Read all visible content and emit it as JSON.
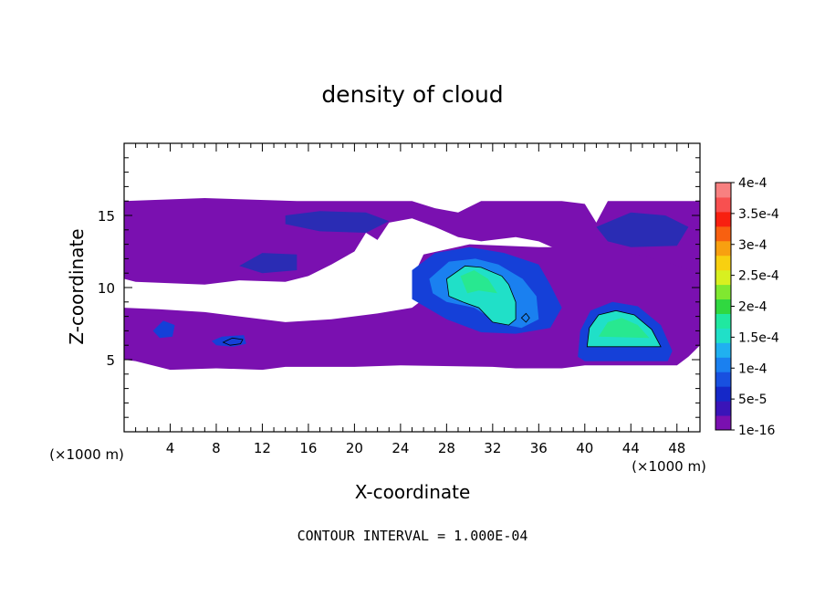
{
  "chart_data": {
    "type": "heatmap",
    "title": "density of cloud",
    "xlabel": "X-coordinate",
    "ylabel": "Z-coordinate",
    "x_unit_label": "(×1000 m)",
    "y_unit_label": "(×1000 m)",
    "xlim": [
      0,
      50
    ],
    "ylim": [
      0,
      20
    ],
    "x_ticks": [
      "4",
      "8",
      "12",
      "16",
      "20",
      "24",
      "28",
      "32",
      "36",
      "40",
      "44",
      "48"
    ],
    "y_ticks": [
      "5",
      "10",
      "15"
    ],
    "footer": "CONTOUR INTERVAL = 1.000E-04",
    "colorbar": {
      "labels": [
        "1e-16",
        "5e-5",
        "1e-4",
        "1.5e-4",
        "2e-4",
        "2.5e-4",
        "3e-4",
        "3.5e-4",
        "4e-4"
      ],
      "colors": [
        "#7a10b0",
        "#3a14b8",
        "#1528c8",
        "#1850e0",
        "#1a80f0",
        "#20b0f0",
        "#20e0c8",
        "#20e8a0",
        "#30d840",
        "#80e830",
        "#d8f020",
        "#f8d010",
        "#f8a010",
        "#f86010",
        "#f82010",
        "#f85050",
        "#f88080"
      ]
    },
    "regions": [
      {
        "name": "upper-cloud-layer",
        "level": 0,
        "polygon": [
          [
            0,
            16
          ],
          [
            7,
            16.2
          ],
          [
            15,
            16
          ],
          [
            25,
            16
          ],
          [
            27,
            15.5
          ],
          [
            29,
            15.2
          ],
          [
            31,
            16
          ],
          [
            38,
            16
          ],
          [
            40,
            15.8
          ],
          [
            41,
            14.5
          ],
          [
            42,
            16
          ],
          [
            50,
            16
          ],
          [
            50,
            11
          ],
          [
            48,
            11.3
          ],
          [
            45,
            11
          ],
          [
            42,
            11.5
          ],
          [
            38,
            12.5
          ],
          [
            36,
            13.2
          ],
          [
            34,
            13.5
          ],
          [
            31,
            13.2
          ],
          [
            29,
            13.5
          ],
          [
            27,
            14.2
          ],
          [
            25,
            14.8
          ],
          [
            23,
            14.5
          ],
          [
            22,
            13.3
          ],
          [
            21,
            13.8
          ],
          [
            20,
            12.5
          ],
          [
            18,
            11.6
          ],
          [
            16,
            10.8
          ],
          [
            14,
            10.4
          ],
          [
            10,
            10.5
          ],
          [
            7,
            10.2
          ],
          [
            4,
            10.3
          ],
          [
            1,
            10.4
          ],
          [
            0,
            10.6
          ]
        ]
      },
      {
        "name": "mid-cloud-layer",
        "level": 0,
        "polygon": [
          [
            0,
            8.6
          ],
          [
            3,
            8.5
          ],
          [
            7,
            8.3
          ],
          [
            12,
            7.8
          ],
          [
            14,
            7.6
          ],
          [
            18,
            7.8
          ],
          [
            22,
            8.2
          ],
          [
            25,
            8.6
          ],
          [
            26,
            9.2
          ],
          [
            25,
            10.6
          ],
          [
            26,
            12.3
          ],
          [
            30,
            13.0
          ],
          [
            36,
            12.8
          ],
          [
            42,
            12.8
          ],
          [
            47,
            11.8
          ],
          [
            50,
            11.0
          ],
          [
            50,
            6.0
          ],
          [
            49,
            5.2
          ],
          [
            48,
            4.6
          ],
          [
            40,
            4.6
          ],
          [
            38,
            4.4
          ],
          [
            34,
            4.4
          ],
          [
            32,
            4.5
          ],
          [
            24,
            4.6
          ],
          [
            20,
            4.5
          ],
          [
            14,
            4.5
          ],
          [
            12,
            4.3
          ],
          [
            8,
            4.4
          ],
          [
            4,
            4.3
          ],
          [
            1,
            4.9
          ],
          [
            0,
            5.0
          ]
        ]
      },
      {
        "name": "low-density-patch-upper",
        "level": 1,
        "polygon": [
          [
            14,
            15
          ],
          [
            17,
            15.3
          ],
          [
            21,
            15.2
          ],
          [
            23,
            14.6
          ],
          [
            21,
            13.8
          ],
          [
            17,
            13.9
          ],
          [
            14,
            14.4
          ]
        ]
      },
      {
        "name": "low-density-patch-right",
        "level": 1,
        "polygon": [
          [
            41,
            14.2
          ],
          [
            44,
            15.2
          ],
          [
            47,
            15.0
          ],
          [
            49,
            14.2
          ],
          [
            48,
            12.9
          ],
          [
            44,
            12.8
          ],
          [
            42,
            13.2
          ]
        ]
      },
      {
        "name": "low-density-patch-left",
        "level": 1,
        "polygon": [
          [
            10,
            11.5
          ],
          [
            12,
            12.4
          ],
          [
            15,
            12.3
          ],
          [
            15,
            11.2
          ],
          [
            12,
            11
          ]
        ]
      },
      {
        "name": "core-region-30km",
        "level": 2,
        "polygon": [
          [
            25,
            11.2
          ],
          [
            27,
            12.4
          ],
          [
            30,
            12.8
          ],
          [
            33,
            12.4
          ],
          [
            36,
            11.6
          ],
          [
            37,
            10.2
          ],
          [
            38,
            8.6
          ],
          [
            37,
            7.2
          ],
          [
            34,
            6.8
          ],
          [
            31,
            6.9
          ],
          [
            28,
            7.8
          ],
          [
            25,
            9.2
          ]
        ]
      },
      {
        "name": "core-region-30km-inner",
        "level": 3,
        "polygon": [
          [
            26.5,
            10.6
          ],
          [
            28.2,
            11.8
          ],
          [
            30.5,
            12.0
          ],
          [
            32.5,
            11.6
          ],
          [
            34.6,
            10.6
          ],
          [
            35.8,
            9.4
          ],
          [
            36,
            7.8
          ],
          [
            34.5,
            7.2
          ],
          [
            32.6,
            7.5
          ],
          [
            30.4,
            8.6
          ],
          [
            28,
            9.0
          ],
          [
            26.8,
            9.6
          ]
        ]
      },
      {
        "name": "core-region-30km-peak",
        "level": 5,
        "polygon": [
          [
            28,
            10.6
          ],
          [
            29.6,
            11.5
          ],
          [
            31.0,
            11.4
          ],
          [
            32.8,
            10.8
          ],
          [
            33.4,
            10.2
          ],
          [
            34.0,
            9.0
          ],
          [
            34.0,
            7.8
          ],
          [
            33.4,
            7.4
          ],
          [
            32.0,
            7.6
          ],
          [
            30.8,
            8.6
          ],
          [
            29.4,
            9.0
          ],
          [
            28.2,
            9.4
          ]
        ]
      },
      {
        "name": "core-region-30km-max",
        "level": 6,
        "polygon": [
          [
            29.2,
            10.8
          ],
          [
            30.4,
            11.2
          ],
          [
            31.6,
            10.6
          ],
          [
            32.4,
            9.6
          ],
          [
            30.8,
            9.8
          ],
          [
            29.8,
            9.6
          ]
        ]
      },
      {
        "name": "dome-region-43km",
        "level": 2,
        "polygon": [
          [
            39.4,
            5.2
          ],
          [
            39.6,
            7.0
          ],
          [
            40.5,
            8.4
          ],
          [
            42.4,
            9.0
          ],
          [
            44.6,
            8.7
          ],
          [
            46.6,
            7.4
          ],
          [
            47.6,
            5.6
          ],
          [
            47.2,
            4.9
          ],
          [
            40,
            4.9
          ]
        ]
      },
      {
        "name": "dome-region-43km-inner",
        "level": 5,
        "polygon": [
          [
            40.2,
            5.9
          ],
          [
            40.4,
            7.2
          ],
          [
            41.2,
            8.1
          ],
          [
            42.7,
            8.4
          ],
          [
            44.3,
            8.1
          ],
          [
            45.8,
            7.1
          ],
          [
            46.6,
            5.9
          ]
        ]
      },
      {
        "name": "dome-region-43km-peak",
        "level": 6,
        "polygon": [
          [
            41.2,
            6.6
          ],
          [
            42.0,
            7.6
          ],
          [
            43.2,
            7.9
          ],
          [
            44.6,
            7.4
          ],
          [
            45.6,
            6.5
          ]
        ]
      },
      {
        "name": "low-level-blob-10km",
        "level": 2,
        "polygon": [
          [
            7.6,
            6.3
          ],
          [
            8.5,
            6.6
          ],
          [
            10.4,
            6.7
          ],
          [
            10.6,
            6.1
          ],
          [
            9.5,
            5.9
          ],
          [
            8,
            6.0
          ]
        ]
      },
      {
        "name": "low-level-blob-3km",
        "level": 2,
        "polygon": [
          [
            2.5,
            7.0
          ],
          [
            3.4,
            7.7
          ],
          [
            4.4,
            7.4
          ],
          [
            4.2,
            6.6
          ],
          [
            3.1,
            6.5
          ]
        ]
      },
      {
        "name": "low-level-blob-35km",
        "level": 3,
        "polygon": [
          [
            34.4,
            7.9
          ],
          [
            34.9,
            8.3
          ],
          [
            35.3,
            7.9
          ],
          [
            34.9,
            7.5
          ]
        ]
      }
    ],
    "contours": [
      {
        "name": "contour-1e-4-core",
        "polygon": [
          [
            28,
            10.6
          ],
          [
            29.6,
            11.5
          ],
          [
            31.0,
            11.4
          ],
          [
            32.8,
            10.8
          ],
          [
            33.4,
            10.2
          ],
          [
            34.0,
            9.0
          ],
          [
            34.0,
            7.8
          ],
          [
            33.4,
            7.4
          ],
          [
            32.0,
            7.6
          ],
          [
            30.8,
            8.6
          ],
          [
            29.4,
            9.0
          ],
          [
            28.2,
            9.4
          ]
        ]
      },
      {
        "name": "contour-1e-4-dome",
        "polygon": [
          [
            40.2,
            5.9
          ],
          [
            40.4,
            7.2
          ],
          [
            41.2,
            8.1
          ],
          [
            42.7,
            8.4
          ],
          [
            44.3,
            8.1
          ],
          [
            45.8,
            7.1
          ],
          [
            46.6,
            5.9
          ]
        ]
      },
      {
        "name": "contour-1e-4-blob-10km",
        "polygon": [
          [
            8.6,
            6.2
          ],
          [
            9.4,
            6.5
          ],
          [
            10.3,
            6.4
          ],
          [
            10.1,
            6.1
          ],
          [
            9.2,
            6.0
          ]
        ]
      },
      {
        "name": "contour-1e-4-blob-35km",
        "polygon": [
          [
            34.5,
            7.9
          ],
          [
            34.9,
            8.2
          ],
          [
            35.2,
            7.9
          ],
          [
            34.9,
            7.6
          ]
        ]
      }
    ]
  }
}
